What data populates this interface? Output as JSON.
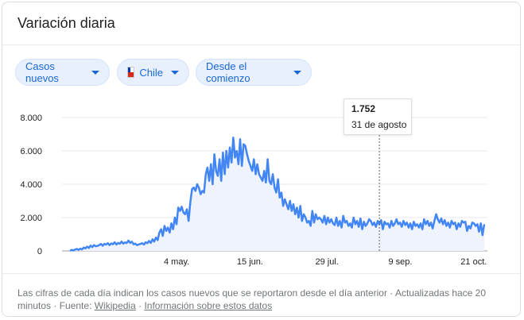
{
  "header": {
    "title": "Variación diaria"
  },
  "filters": {
    "metric_label": "Casos nuevos",
    "country_label": "Chile",
    "range_label": "Desde el comienzo"
  },
  "tooltip": {
    "value": "1.752",
    "date": "31 de agosto"
  },
  "footer": {
    "text1": "Las cifras de cada día indican los casos nuevos que se reportaron desde el día anterior · Actualizadas hace 20",
    "text2": "minutos",
    "sep1": " · ",
    "source_prefix": "Fuente: ",
    "source_link": "Wikipedia",
    "sep2": " · ",
    "info_link": "Información sobre estos datos"
  },
  "colors": {
    "line": "#4285f4",
    "area": "#eef3fd",
    "chip_bg": "#e8f0fe",
    "chip_text": "#1967d2"
  },
  "chart_data": {
    "type": "area",
    "title": "",
    "xlabel": "",
    "ylabel": "",
    "ylim": [
      0,
      8000
    ],
    "yticks": [
      "0",
      "2.000",
      "4.000",
      "6.000",
      "8.000"
    ],
    "ytick_values": [
      0,
      2000,
      4000,
      6000,
      8000
    ],
    "xticks": [
      {
        "label": "4 may.",
        "day": 61
      },
      {
        "label": "15 jun.",
        "day": 103
      },
      {
        "label": "29 jul.",
        "day": 147
      },
      {
        "label": "9 sep.",
        "day": 189
      },
      {
        "label": "21 oct.",
        "day": 231
      }
    ],
    "x_domain_days": [
      0,
      237
    ],
    "day_origin": "4 mar.",
    "series": [
      {
        "values": [
          10,
          60,
          30,
          80,
          120,
          60,
          140,
          90,
          200,
          150,
          260,
          180,
          320,
          230,
          350,
          280,
          300,
          350,
          420,
          310,
          420,
          380,
          460,
          350,
          450,
          400,
          520,
          380,
          480,
          430,
          560,
          440,
          510,
          470,
          620,
          480,
          550,
          400,
          440,
          350,
          390,
          420,
          460,
          380,
          520,
          460,
          600,
          480,
          700,
          560,
          800,
          650,
          1100,
          1300,
          900,
          1500,
          1200,
          1400,
          1100,
          1650,
          1300,
          2000,
          1600,
          2600,
          2400,
          2650,
          2300,
          2200,
          2500,
          1800,
          2900,
          3700,
          3800,
          3600,
          4000,
          3800,
          3400,
          3600,
          3500,
          4600,
          5000,
          4200,
          5200,
          4000,
          5800,
          4800,
          4500,
          5500,
          4200,
          5900,
          4600,
          6000,
          5000,
          6200,
          5300,
          6800,
          5600,
          6000,
          5200,
          6700,
          5100,
          6400,
          6300,
          5800,
          5400,
          5100,
          4800,
          5500,
          4600,
          5200,
          4600,
          4400,
          4200,
          4800,
          4100,
          5500,
          4200,
          4000,
          4600,
          3800,
          3500,
          4300,
          3200,
          3500,
          2700,
          3100,
          2800,
          2500,
          3000,
          2400,
          2800,
          2200,
          2600,
          2000,
          2700,
          1800,
          2200,
          2000,
          1700,
          1800,
          1500,
          2400,
          1700,
          2200,
          1900,
          2000,
          1900,
          1700,
          2100,
          1600,
          2000,
          1700,
          1900,
          1650,
          1550,
          2000,
          1500,
          1800,
          1400,
          2100,
          1700,
          1800,
          1500,
          1650,
          1400,
          2000,
          1600,
          1800,
          1450,
          1950,
          1300,
          1750,
          1500,
          1650,
          1900,
          1800,
          1550,
          1700,
          1450,
          1800,
          1600,
          1850,
          1300,
          1752,
          1600,
          1650,
          1400,
          1800,
          1500,
          1650,
          1900,
          1600,
          1700,
          1450,
          1800,
          1550,
          1700,
          1400,
          1650,
          1300,
          1750,
          1500,
          1600,
          1400,
          1650,
          1300,
          1900,
          1600,
          1800,
          1500,
          1700,
          1350,
          1800,
          2200,
          1900,
          1700,
          1950,
          1600,
          1850,
          1500,
          1700,
          1400,
          1800,
          1600,
          1700,
          1300,
          1650,
          1450,
          1800,
          1700,
          1750,
          1200,
          1500,
          1350,
          1700,
          1650,
          1500,
          1600,
          1150,
          1650,
          950,
          1600
        ]
      }
    ]
  }
}
